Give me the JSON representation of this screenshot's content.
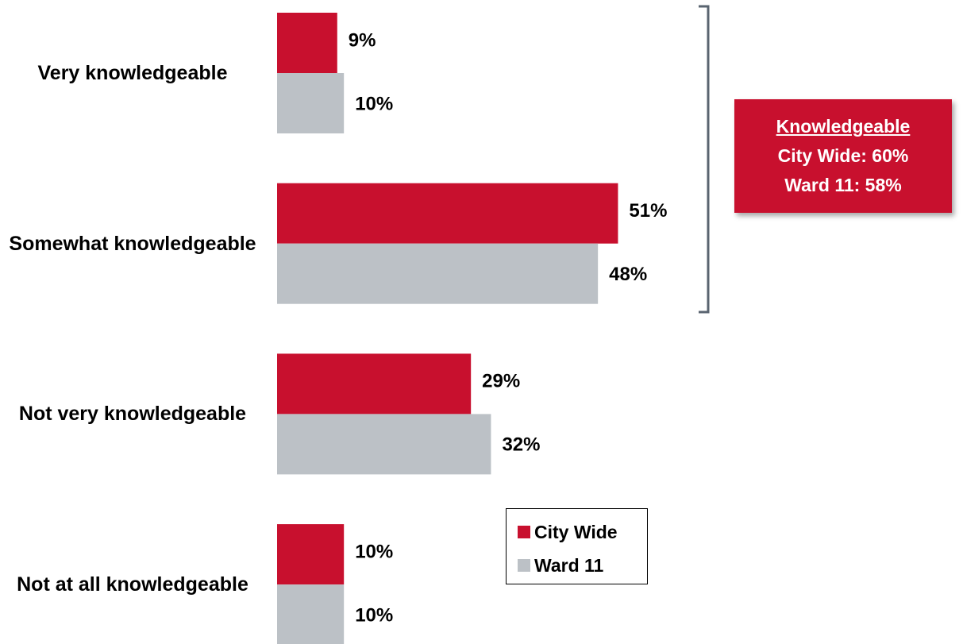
{
  "chart_data": {
    "type": "bar",
    "orientation": "horizontal",
    "categories": [
      "Very knowledgeable",
      "Somewhat knowledgeable",
      "Not very knowledgeable",
      "Not at all knowledgeable"
    ],
    "series": [
      {
        "name": "City Wide",
        "color": "#c8102e",
        "values": [
          9,
          51,
          29,
          10
        ],
        "value_labels": [
          "9%",
          "51%",
          "29%",
          "10%"
        ]
      },
      {
        "name": "Ward 11",
        "color": "#bcc1c6",
        "values": [
          10,
          48,
          32,
          10
        ],
        "value_labels": [
          "10%",
          "48%",
          "32%",
          "10%"
        ]
      }
    ],
    "annotation": {
      "title": "Knowledgeable",
      "lines": [
        "City Wide: 60%",
        "Ward 11: 58%"
      ]
    }
  }
}
